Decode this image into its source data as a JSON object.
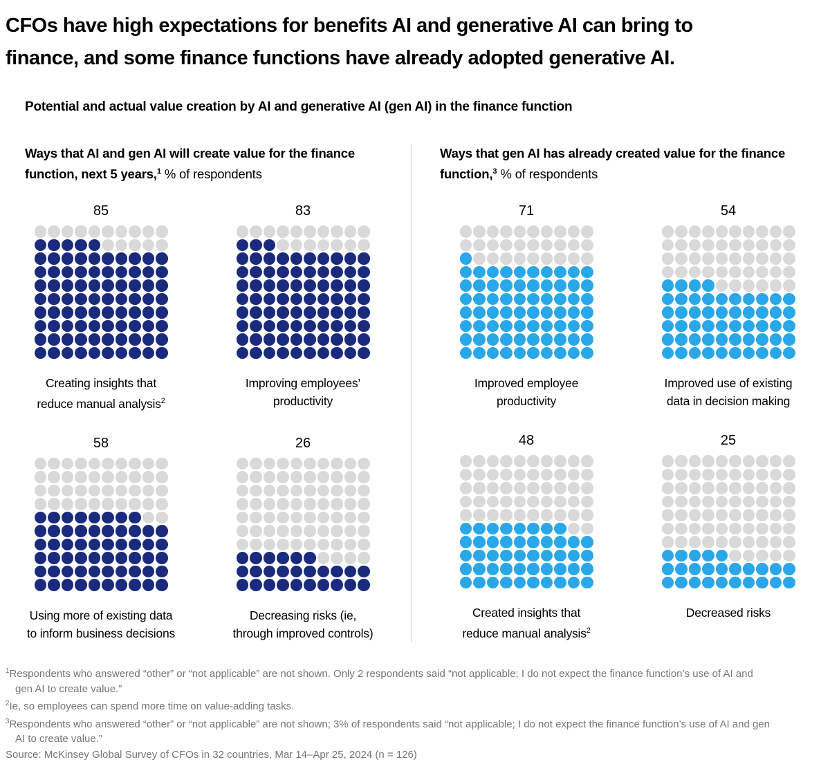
{
  "title": {
    "line1": "CFOs have high expectations for benefits AI and generative AI can bring to",
    "line2": "finance, and some finance functions have already adopted generative AI."
  },
  "subtitle": "Potential and actual value creation by AI and generative AI (gen AI) in the finance function",
  "colors": {
    "dark_blue": "#1a2b7d",
    "light_blue": "#29a7e8",
    "empty_gray": "#d9d9d9",
    "divider_gray": "#d0d0d0",
    "footnote_gray": "#757575"
  },
  "left": {
    "header_bold": "Ways that AI and gen AI will create value for the finance function, next 5 years,",
    "header_sup": "1",
    "header_rest": " % of respondents",
    "charts": [
      {
        "value": 85,
        "label_lines": [
          "Creating insights that",
          "reduce manual analysis"
        ],
        "sup": "2"
      },
      {
        "value": 83,
        "label_lines": [
          "Improving employees’",
          "productivity"
        ]
      },
      {
        "value": 58,
        "label_lines": [
          "Using more of existing data",
          "to inform business decisions"
        ]
      },
      {
        "value": 26,
        "label_lines": [
          "Decreasing risks (ie,",
          "through improved controls)"
        ]
      }
    ]
  },
  "right": {
    "header_bold": "Ways that gen AI has already created value for the finance function,",
    "header_sup": "3",
    "header_rest": " % of respondents",
    "charts": [
      {
        "value": 71,
        "label_lines": [
          "Improved employee",
          "productivity"
        ]
      },
      {
        "value": 54,
        "label_lines": [
          "Improved use of existing",
          "data in decision making"
        ]
      },
      {
        "value": 48,
        "label_lines": [
          "Created insights that",
          "reduce manual analysis"
        ],
        "sup": "2"
      },
      {
        "value": 25,
        "label_lines": [
          "Decreased risks"
        ]
      }
    ]
  },
  "footnotes": [
    {
      "sup": "1",
      "text": "Respondents who answered “other” or “not applicable” are not shown. Only 2 respondents said “not applicable; I do not expect the finance function’s use of AI and gen AI to create value.”"
    },
    {
      "sup": "2",
      "text": "Ie, so employees can spend more time on value-adding tasks."
    },
    {
      "sup": "3",
      "text": "Respondents who answered “other” or “not applicable” are not shown; 3% of respondents said “not applicable; I do not expect the finance function’s use of AI and gen AI to create value.”"
    }
  ],
  "source": "Source: McKinsey Global Survey of CFOs in 32 countries, Mar 14–Apr 25, 2024 (n = 126)",
  "chart_data": {
    "type": "waffle",
    "title": "Potential and actual value creation by AI and generative AI (gen AI) in the finance function",
    "unit": "each dot = 1% of respondents, 10x10 grid filled from bottom-left",
    "panels": [
      {
        "name": "Ways that AI and gen AI will create value for the finance function, next 5 years, % of respondents",
        "categories": [
          "Creating insights that reduce manual analysis",
          "Improving employees’ productivity",
          "Using more of existing data to inform business decisions",
          "Decreasing risks (ie, through improved controls)"
        ],
        "values": [
          85,
          83,
          58,
          26
        ],
        "fill_color": "#1a2b7d"
      },
      {
        "name": "Ways that gen AI has already created value for the finance function, % of respondents",
        "categories": [
          "Improved employee productivity",
          "Improved use of existing data in decision making",
          "Created insights that reduce manual analysis",
          "Decreased risks"
        ],
        "values": [
          71,
          54,
          48,
          25
        ],
        "fill_color": "#29a7e8"
      }
    ]
  }
}
